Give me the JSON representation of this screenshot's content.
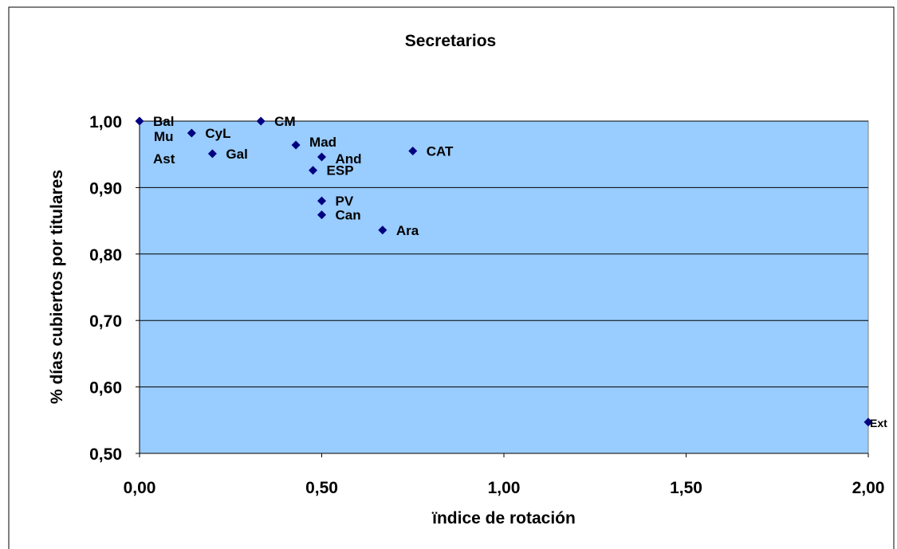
{
  "chart_data": {
    "type": "scatter",
    "title": "Secretarios",
    "xlabel": "ïndice de rotación",
    "ylabel": "% días cubiertos por titulares",
    "xlim": [
      0,
      2
    ],
    "ylim": [
      0.5,
      1.0
    ],
    "x_ticks": [
      0,
      0.5,
      1.0,
      1.5,
      2.0
    ],
    "x_tick_labels": [
      "0,00",
      "0,50",
      "1,00",
      "1,50",
      "2,00"
    ],
    "y_ticks": [
      0.5,
      0.6,
      0.7,
      0.8,
      0.9,
      1.0
    ],
    "y_tick_labels": [
      "0,50",
      "0,60",
      "0,70",
      "0,80",
      "0,90",
      "1,00"
    ],
    "grid": true,
    "legend": "none",
    "colors": {
      "plot_area": "#99ccff",
      "marker": "#000080",
      "gridline": "#000000"
    },
    "points": [
      {
        "label": "Bal",
        "x": 0.0,
        "y": 1.0
      },
      {
        "label": "CM",
        "x": 0.333,
        "y": 1.0
      },
      {
        "label": "CyL",
        "x": 0.143,
        "y": 0.982
      },
      {
        "label": "Mad",
        "x": 0.429,
        "y": 0.964
      },
      {
        "label": "CAT",
        "x": 0.75,
        "y": 0.955
      },
      {
        "label": "Gal",
        "x": 0.2,
        "y": 0.951
      },
      {
        "label": "And",
        "x": 0.5,
        "y": 0.946
      },
      {
        "label": "ESP",
        "x": 0.476,
        "y": 0.926
      },
      {
        "label": "PV",
        "x": 0.5,
        "y": 0.88
      },
      {
        "label": "Can",
        "x": 0.5,
        "y": 0.859
      },
      {
        "label": "Ara",
        "x": 0.667,
        "y": 0.836
      },
      {
        "label": "Ext",
        "x": 2.0,
        "y": 0.547
      }
    ],
    "unplotted_labels": [
      "Mu",
      "Ast"
    ]
  }
}
